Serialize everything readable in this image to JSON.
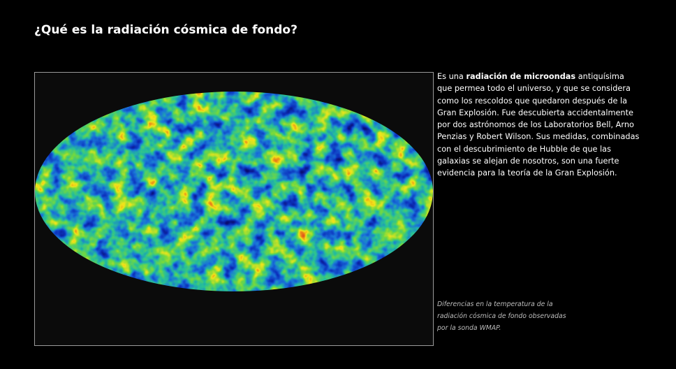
{
  "header": {
    "title": "¿Qué es la radiación cósmica de fondo?"
  },
  "body": {
    "parts": [
      "Es una ",
      "radiación de microondas",
      " antiquísima que permea todo el universo, y que se considera como los rescoldos que quedaron después de la Gran Explosión. Fue descubierta accidentalmente por dos astrónomos de los Laboratorios Bell, Arno Penzias y Robert Wilson. Sus medidas, combinadas con el descubrimiento de Hubble de que las galaxias se alejan de nosotros, son una fuerte evidencia para la teoría de la Gran Explosión."
    ]
  },
  "caption": "Diferencias en la temperatura de la radiación cósmica de fondo observadas por la sonda WMAP."
}
